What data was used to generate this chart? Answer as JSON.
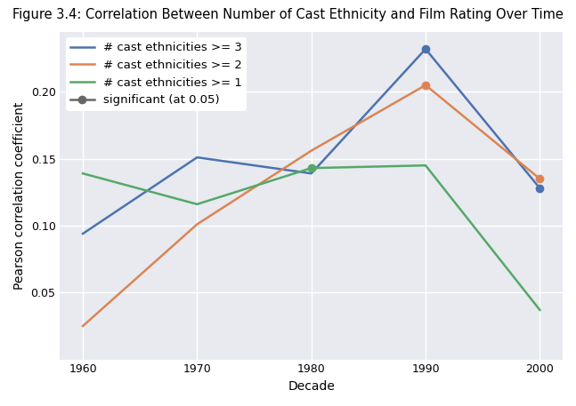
{
  "title": "Figure 3.4: Correlation Between Number of Cast Ethnicity and Film Rating Over Time",
  "xlabel": "Decade",
  "ylabel": "Pearson correlation coefficient",
  "decades": [
    1960,
    1970,
    1980,
    1990,
    2000
  ],
  "series": {
    "ge3": {
      "label": "# cast ethnicities >= 3",
      "color": "#4c72b0",
      "values": [
        0.094,
        0.151,
        0.139,
        0.232,
        0.128
      ],
      "significant": [
        false,
        false,
        false,
        true,
        true
      ]
    },
    "ge2": {
      "label": "# cast ethnicities >= 2",
      "color": "#dd8452",
      "values": [
        0.025,
        0.101,
        0.156,
        0.205,
        0.135
      ],
      "significant": [
        false,
        false,
        false,
        true,
        true
      ]
    },
    "ge1": {
      "label": "# cast ethnicities >= 1",
      "color": "#55a868",
      "values": [
        0.139,
        0.116,
        0.143,
        0.145,
        0.037
      ],
      "significant": [
        false,
        false,
        true,
        false,
        false
      ]
    }
  },
  "sig_legend_color": "#666666",
  "sig_marker": "o",
  "sig_markersize": 6,
  "background_color": "#e8eaf0",
  "grid_color": "white",
  "ylim": [
    0.0,
    0.245
  ],
  "yticks": [
    0.05,
    0.1,
    0.15,
    0.2
  ],
  "title_fontsize": 10.5,
  "axis_fontsize": 10,
  "tick_fontsize": 9,
  "legend_fontsize": 9.5,
  "linewidth": 1.8
}
